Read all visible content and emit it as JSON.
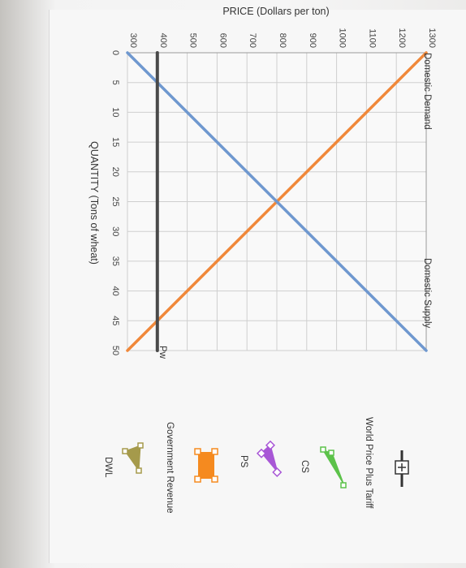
{
  "chart_data": {
    "type": "line",
    "title": "",
    "ylabel": "PRICE (Dollars per ton)",
    "xlabel": "QUANTITY (Tons of wheat)",
    "x_ticks": [
      0,
      5,
      10,
      15,
      20,
      25,
      30,
      35,
      40,
      45,
      50
    ],
    "y_ticks": [
      300,
      400,
      500,
      600,
      700,
      800,
      900,
      1000,
      1100,
      1200,
      1300
    ],
    "xlim": [
      0,
      50
    ],
    "ylim": [
      300,
      1300
    ],
    "grid": true,
    "series": [
      {
        "name": "Domestic Demand",
        "color": "#f0883a",
        "points": [
          [
            0,
            1300
          ],
          [
            50,
            300
          ]
        ]
      },
      {
        "name": "Domestic Supply",
        "color": "#6f98cf",
        "points": [
          [
            0,
            300
          ],
          [
            50,
            1300
          ]
        ]
      },
      {
        "name": "Pw",
        "color": "#4a4a4a",
        "points": [
          [
            0,
            400
          ],
          [
            50,
            400
          ]
        ]
      }
    ]
  },
  "tools": [
    {
      "label": "World Price Plus Tariff",
      "icon": "crosshair-line-icon",
      "color": "#333333"
    },
    {
      "label": "CS",
      "icon": "triangle-icon",
      "color": "#5cc24a"
    },
    {
      "label": "PS",
      "icon": "triangle-icon",
      "color": "#a857d6"
    },
    {
      "label": "Government Revenue",
      "icon": "rectangle-icon",
      "color": "#f58a1f"
    },
    {
      "label": "DWL",
      "icon": "triangle-icon",
      "color": "#a59a4b"
    }
  ]
}
